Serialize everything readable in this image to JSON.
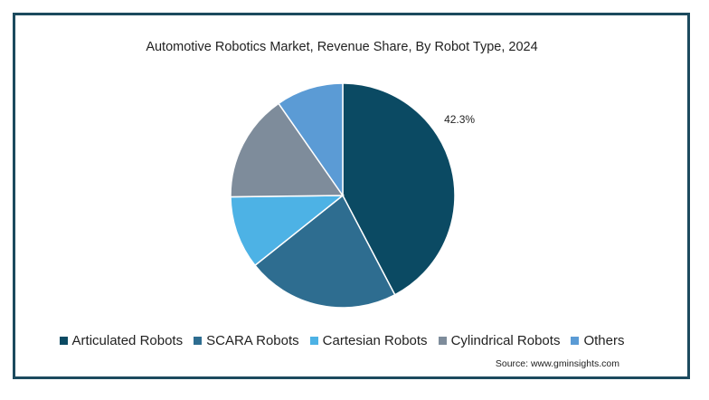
{
  "chart_data": {
    "type": "pie",
    "title": "Automotive Robotics Market, Revenue Share, By Robot Type, 2024",
    "series": [
      {
        "name": "Articulated Robots",
        "value": 42.3,
        "color": "#0b4a63",
        "label": "42.3%"
      },
      {
        "name": "SCARA Robots",
        "value": 22.0,
        "color": "#2e6d90",
        "label": ""
      },
      {
        "name": "Cartesian Robots",
        "value": 10.5,
        "color": "#4db2e5",
        "label": ""
      },
      {
        "name": "Cylindrical Robots",
        "value": 15.5,
        "color": "#7e8c9b",
        "label": ""
      },
      {
        "name": "Others",
        "value": 9.7,
        "color": "#5b9bd5",
        "label": ""
      }
    ],
    "legend_position": "bottom",
    "start": "12 o'clock",
    "direction": "clockwise"
  },
  "source": "Source: www.gminsights.com"
}
